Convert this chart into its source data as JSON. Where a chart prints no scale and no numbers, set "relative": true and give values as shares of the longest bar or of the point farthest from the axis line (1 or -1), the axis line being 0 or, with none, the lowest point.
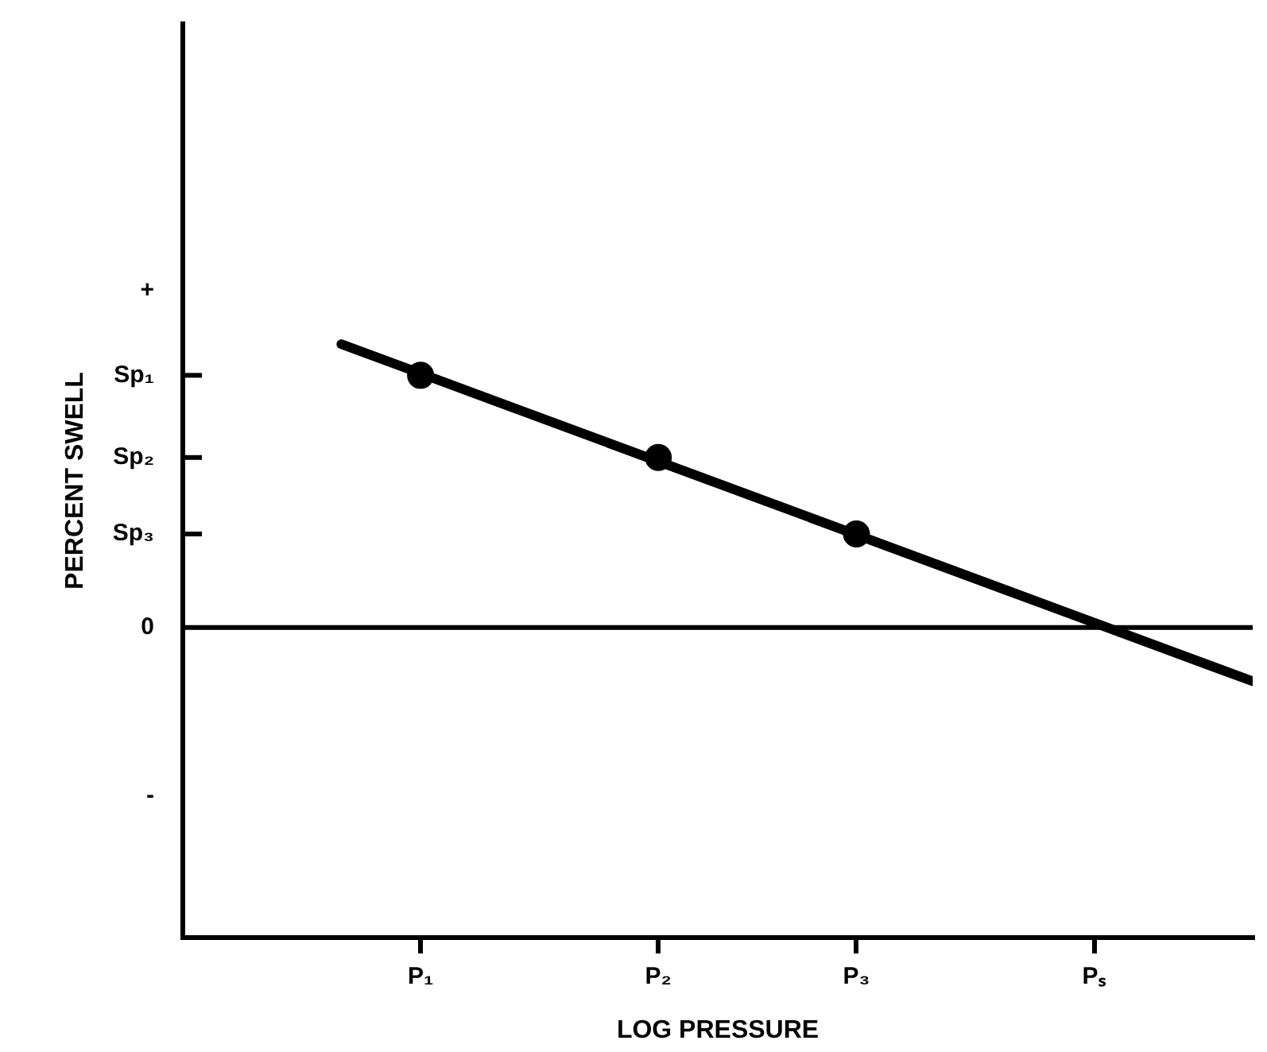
{
  "chart_data": {
    "type": "line",
    "xlabel": "LOG PRESSURE",
    "ylabel": "PERCENT SWELL",
    "relative": true,
    "categories": [
      null,
      null,
      null,
      null,
      null,
      null,
      "P₁",
      null,
      null,
      null,
      null,
      null,
      "P₂",
      null,
      null,
      null,
      null,
      "P₃",
      null,
      null,
      null,
      null,
      null,
      "Pₛ",
      null,
      null,
      null,
      null
    ],
    "series": [
      {
        "color": "#000000",
        "values": [
          null,
          null,
          null,
          null,
          1,
          null,
          null,
          null,
          null,
          null,
          null,
          null,
          null,
          null,
          null,
          null,
          null,
          null,
          null,
          null,
          null,
          null,
          null,
          null,
          null,
          null,
          null,
          -0.19
        ],
        "marker": "none"
      },
      {
        "type": "scatter",
        "color": "#000000",
        "x": [
          "P₁",
          "P₂",
          "P₃"
        ],
        "values": [
          0.89,
          0.6,
          0.33
        ]
      }
    ],
    "annotations": [
      "+",
      "Sp₁",
      "Sp₂",
      "Sp₃",
      "0",
      "-"
    ],
    "ref_lines": [
      {
        "axis": "y",
        "value": 0,
        "color": "#000000"
      }
    ],
    "marker": "circle",
    "legend": false
  }
}
